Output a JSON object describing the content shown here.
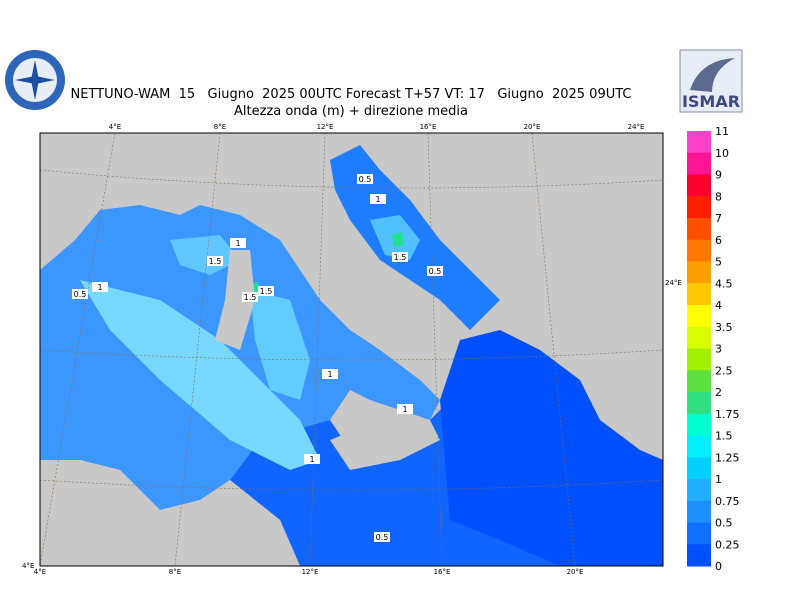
{
  "header": {
    "title": "NETTUNO-WAM  15   Giugno  2025 00UTC Forecast T+57 VT: 17   Giugno  2025 09UTC",
    "subtitle": "Altezza onda (m) + direzione media",
    "logo_text": "ISMAR"
  },
  "map": {
    "top_lon_labels": [
      "4°E",
      "8°E",
      "12°E",
      "16°E",
      "20°E",
      "24°E"
    ],
    "bottom_lon_labels": [
      "4°E",
      "8°E",
      "12°E",
      "16°E",
      "20°E"
    ],
    "right_label": "24°E",
    "corner_label": "4°E",
    "contour_labels": [
      "0.5",
      "1",
      "1.5",
      "1.5",
      "0.5",
      "1",
      "1",
      "1.5",
      "1",
      "1",
      "0.5",
      "1.5",
      "1",
      "0.5"
    ]
  },
  "legend": {
    "labels": [
      "11",
      "10",
      "9",
      "8",
      "7",
      "6",
      "5",
      "4.5",
      "4",
      "3.5",
      "3",
      "2.5",
      "2",
      "1.75",
      "1.5",
      "1.25",
      "1",
      "0.75",
      "0.5",
      "0.25",
      "0"
    ],
    "colors": [
      "#ff40c8",
      "#ff1493",
      "#ff0030",
      "#ff2000",
      "#ff5000",
      "#ff7800",
      "#ffa000",
      "#ffc800",
      "#ffff00",
      "#d8ff00",
      "#a0f000",
      "#60e040",
      "#30e080",
      "#00ffd0",
      "#00f0ff",
      "#00d0ff",
      "#20b0ff",
      "#2090ff",
      "#1070ff",
      "#0050ff"
    ]
  }
}
